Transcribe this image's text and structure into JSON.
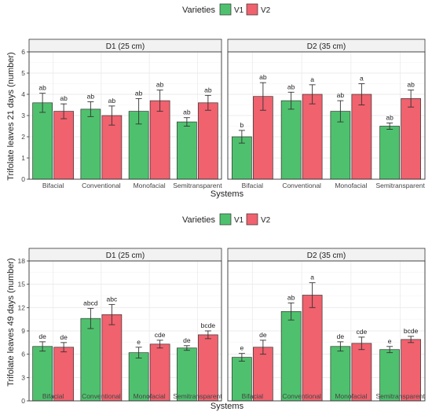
{
  "colors": {
    "V1": "#4fc16e",
    "V2": "#f0626e",
    "strip": "#f2f2f2",
    "frame": "#333333",
    "grid": "#ebebeb"
  },
  "chart_data": [
    {
      "type": "bar",
      "ylabel": "Trifolate leaves 21 days (number)",
      "xlabel": "Systems",
      "ylim": [
        0,
        6
      ],
      "yticks": [
        "0",
        "1",
        "2",
        "3",
        "4",
        "5",
        "6"
      ],
      "legend": {
        "title": "Varieties",
        "placement": "top",
        "labels": [
          "V1",
          "V2"
        ]
      },
      "facets": [
        {
          "strip": "D1 (25 cm)",
          "categories": [
            "Bifacial",
            "Conventional",
            "Monofacial",
            "Semitransparent"
          ],
          "series": [
            {
              "name": "V1",
              "values": [
                3.6,
                3.3,
                3.2,
                2.7
              ],
              "err": [
                0.45,
                0.35,
                0.6,
                0.2
              ],
              "labels": [
                "ab",
                "ab",
                "ab",
                "ab"
              ]
            },
            {
              "name": "V2",
              "values": [
                3.2,
                3.0,
                3.7,
                3.6
              ],
              "err": [
                0.35,
                0.45,
                0.5,
                0.35
              ],
              "labels": [
                "ab",
                "ab",
                "ab",
                "ab"
              ]
            }
          ]
        },
        {
          "strip": "D2 (35 cm)",
          "categories": [
            "Bifacial",
            "Conventional",
            "Monofacial",
            "Semitransparent"
          ],
          "series": [
            {
              "name": "V1",
              "values": [
                2.0,
                3.7,
                3.2,
                2.5
              ],
              "err": [
                0.3,
                0.4,
                0.5,
                0.15
              ],
              "labels": [
                "b",
                "ab",
                "ab",
                "ab"
              ]
            },
            {
              "name": "V2",
              "values": [
                3.9,
                4.0,
                4.0,
                3.8
              ],
              "err": [
                0.65,
                0.45,
                0.5,
                0.4
              ],
              "labels": [
                "ab",
                "a",
                "a",
                "ab"
              ]
            }
          ]
        }
      ]
    },
    {
      "type": "bar",
      "ylabel": "Trifolate leaves 49 days (number)",
      "xlabel": "Systems",
      "ylim": [
        0,
        18
      ],
      "yticks": [
        "0",
        "3",
        "6",
        "9",
        "12",
        "15",
        "18"
      ],
      "legend": {
        "title": "Varieties",
        "placement": "top",
        "labels": [
          "V1",
          "V2"
        ]
      },
      "facets": [
        {
          "strip": "D1 (25 cm)",
          "categories": [
            "Bifacial",
            "Conventional",
            "Monofacial",
            "Semitransparent"
          ],
          "series": [
            {
              "name": "V1",
              "values": [
                7.0,
                10.6,
                6.2,
                6.8
              ],
              "err": [
                0.6,
                1.3,
                0.7,
                0.3
              ],
              "labels": [
                "de",
                "abcd",
                "e",
                "de"
              ]
            },
            {
              "name": "V2",
              "values": [
                6.9,
                11.1,
                7.3,
                8.5
              ],
              "err": [
                0.6,
                1.3,
                0.5,
                0.5
              ],
              "labels": [
                "de",
                "abc",
                "cde",
                "bcde"
              ]
            }
          ]
        },
        {
          "strip": "D2 (35 cm)",
          "categories": [
            "Bifacial",
            "Conventional",
            "Monofacial",
            "Semitransparent"
          ],
          "series": [
            {
              "name": "V1",
              "values": [
                5.6,
                11.5,
                7.0,
                6.6
              ],
              "err": [
                0.5,
                1.1,
                0.6,
                0.4
              ],
              "labels": [
                "e",
                "ab",
                "de",
                "e"
              ]
            },
            {
              "name": "V2",
              "values": [
                6.9,
                13.6,
                7.4,
                7.9
              ],
              "err": [
                0.9,
                1.6,
                0.8,
                0.4
              ],
              "labels": [
                "de",
                "a",
                "cde",
                "bcde"
              ]
            }
          ]
        }
      ]
    }
  ]
}
